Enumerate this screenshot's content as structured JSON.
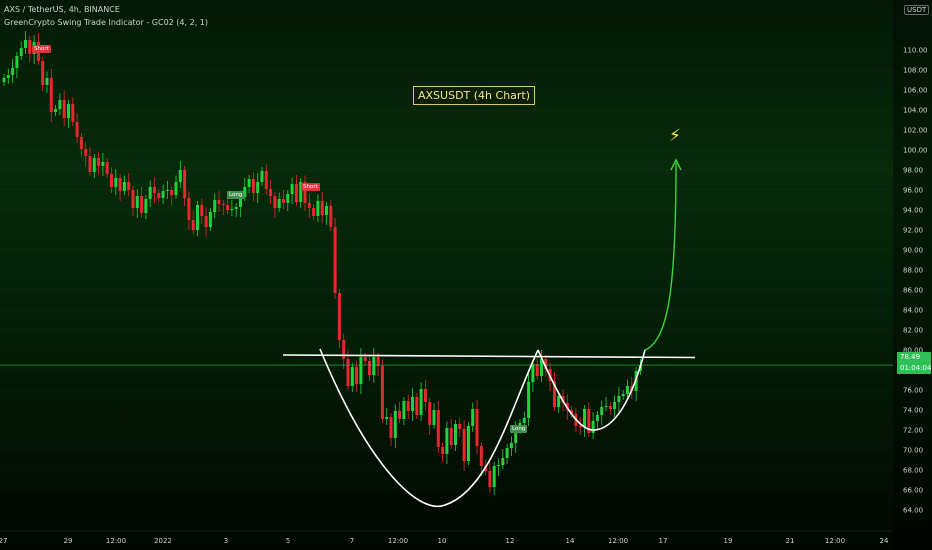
{
  "header": {
    "symbol": "AXS / TetherUS, 4h, BINANCE",
    "indicator": "GreenCrypto Swing Trade Indicator - GC02 (4, 2, 1)"
  },
  "price_axis": {
    "currency": "USDT",
    "current_price": "78.49",
    "countdown": "01:04:04"
  },
  "annotation": {
    "title": "AXSUSDT (4h Chart)"
  },
  "signals": [
    {
      "text": "Short",
      "type": "short"
    },
    {
      "text": "Long",
      "type": "long"
    },
    {
      "text": "Short",
      "type": "short"
    },
    {
      "text": "Long",
      "type": "long"
    }
  ],
  "icons": {
    "bolt": "lightning-bolt-icon",
    "settings": "gear-icon"
  },
  "colors": {
    "up": "#22d13c",
    "down": "#e8272e",
    "accent_line": "#3cd43a",
    "neckline": "#ffffff",
    "title_border": "#d7c86a"
  },
  "chart_data": {
    "type": "candlestick",
    "title": "AXSUSDT (4h Chart)",
    "ylim": [
      62,
      112
    ],
    "y_ticks": [
      64,
      66,
      68,
      70,
      72,
      74,
      76,
      78,
      80,
      82,
      84,
      86,
      88,
      90,
      92,
      94,
      96,
      98,
      100,
      102,
      104,
      106,
      108,
      110
    ],
    "x_tick_labels": [
      "27",
      "29",
      "12:00",
      "2022",
      "3",
      "5",
      "7",
      "12:00",
      "10",
      "12",
      "14",
      "12:00",
      "17",
      "19",
      "21",
      "12:00",
      "24"
    ],
    "current_price": 78.49,
    "neckline_price": 79.4,
    "pattern": "cup and handle",
    "candles_close": [
      107.2,
      107.5,
      108.2,
      109.4,
      110.2,
      111.0,
      109.6,
      110.8,
      108.9,
      106.5,
      107.2,
      103.8,
      104.1,
      105.0,
      103.2,
      104.6,
      102.8,
      101.3,
      100.1,
      99.4,
      97.8,
      99.2,
      98.4,
      98.8,
      97.6,
      96.3,
      97.2,
      95.9,
      96.8,
      96.0,
      94.2,
      95.4,
      93.7,
      95.1,
      96.3,
      95.7,
      95.2,
      95.9,
      96.0,
      95.5,
      96.8,
      98.0,
      95.2,
      93.0,
      92.0,
      94.5,
      93.4,
      92.3,
      93.8,
      95.0,
      94.6,
      94.5,
      94.0,
      94.1,
      94.3,
      95.3,
      96.3,
      97.1,
      95.7,
      96.8,
      97.9,
      96.1,
      95.4,
      94.2,
      95.1,
      94.7,
      95.6,
      96.6,
      94.8,
      96.8,
      94.7,
      94.2,
      93.4,
      94.9,
      93.5,
      94.4,
      92.3,
      85.7,
      81.0,
      79.1,
      76.4,
      78.3,
      76.6,
      79.3,
      78.9,
      77.5,
      79.3,
      78.4,
      73.1,
      73.3,
      71.2,
      73.9,
      73.1,
      74.9,
      73.9,
      75.3,
      73.5,
      76.1,
      74.8,
      72.5,
      74.0,
      70.3,
      69.6,
      72.2,
      70.5,
      72.6,
      72.1,
      68.9,
      72.4,
      74.1,
      70.4,
      68.4,
      67.9,
      66.3,
      68.4,
      68.5,
      69.2,
      70.2,
      70.7,
      72.0,
      72.7,
      73.2,
      76.8,
      78.6,
      77.4,
      79.1,
      78.1,
      76.9,
      74.3,
      75.4,
      74.7,
      74.0,
      73.6,
      72.4,
      72.3,
      74.1,
      71.7,
      72.9,
      73.5,
      74.3,
      74.4,
      74.1,
      74.8,
      75.4,
      75.6,
      76.4,
      75.9,
      77.9,
      78.49
    ]
  }
}
